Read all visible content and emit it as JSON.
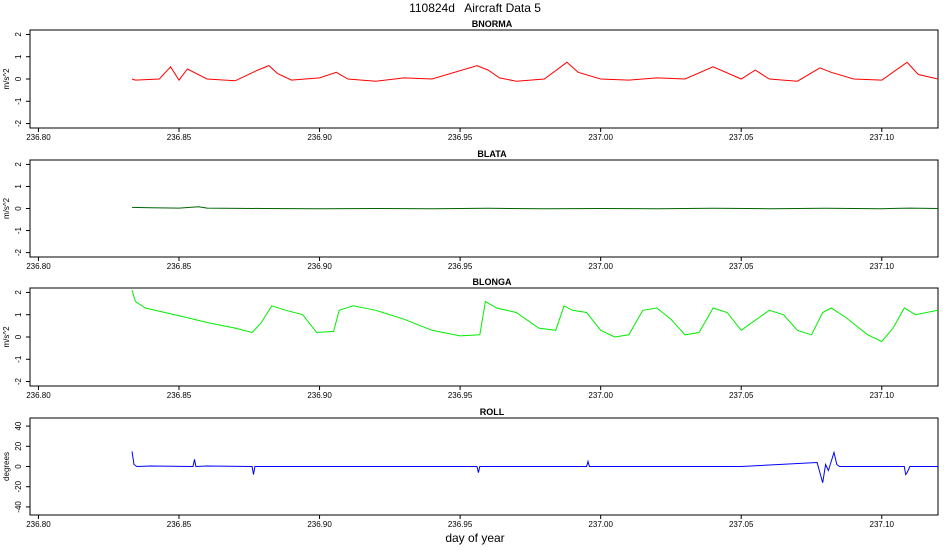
{
  "page_title": "110824d   Aircraft Data 5",
  "x_axis_label": "day of year",
  "chart_data": [
    {
      "type": "line",
      "title": "BNORMA",
      "ylabel": "m/s^2",
      "color": "#ff0000",
      "xlim": [
        236.797,
        237.12
      ],
      "ylim": [
        -2.2,
        2.2
      ],
      "xticks": [
        "236.80",
        "236.85",
        "236.90",
        "236.95",
        "237.00",
        "237.05",
        "237.10"
      ],
      "yticks": [
        "-2",
        "-1",
        "0",
        "1",
        "2"
      ],
      "series": [
        {
          "x": [
            236.8333,
            236.8345,
            236.843,
            236.847,
            236.85,
            236.853,
            236.86,
            236.87,
            236.878,
            236.882,
            236.885,
            236.89,
            236.9,
            236.906,
            236.91,
            236.92,
            236.93,
            236.94,
            236.956,
            236.96,
            236.964,
            236.97,
            236.98,
            236.988,
            236.992,
            237.0,
            237.01,
            237.02,
            237.03,
            237.04,
            237.05,
            237.055,
            237.06,
            237.07,
            237.078,
            237.082,
            237.09,
            237.1,
            237.109,
            237.113,
            237.12
          ],
          "y": [
            0,
            -0.05,
            0,
            0.55,
            -0.05,
            0.45,
            0,
            -0.08,
            0.4,
            0.6,
            0.25,
            -0.05,
            0.05,
            0.3,
            0,
            -0.1,
            0.05,
            0,
            0.6,
            0.4,
            0.05,
            -0.1,
            0,
            0.75,
            0.3,
            0,
            -0.05,
            0.05,
            0,
            0.55,
            0,
            0.4,
            0,
            -0.1,
            0.5,
            0.3,
            0,
            -0.05,
            0.75,
            0.2,
            0
          ]
        }
      ]
    },
    {
      "type": "line",
      "title": "BLATA",
      "ylabel": "m/s^2",
      "color": "#006400",
      "xlim": [
        236.797,
        237.12
      ],
      "ylim": [
        -2.2,
        2.2
      ],
      "xticks": [
        "236.80",
        "236.85",
        "236.90",
        "236.95",
        "237.00",
        "237.05",
        "237.10"
      ],
      "yticks": [
        "-2",
        "-1",
        "0",
        "1",
        "2"
      ],
      "series": [
        {
          "x": [
            236.8333,
            236.84,
            236.85,
            236.857,
            236.86,
            236.88,
            236.9,
            236.92,
            236.94,
            236.96,
            236.98,
            237.0,
            237.02,
            237.04,
            237.06,
            237.08,
            237.1,
            237.11,
            237.12
          ],
          "y": [
            0.05,
            0.03,
            0.02,
            0.08,
            0.02,
            0.0,
            -0.01,
            0.0,
            -0.01,
            0.01,
            -0.01,
            0.0,
            -0.01,
            0.01,
            -0.01,
            0.01,
            -0.01,
            0.02,
            0.0
          ]
        }
      ]
    },
    {
      "type": "line",
      "title": "BLONGA",
      "ylabel": "m/s^2",
      "color": "#00ee00",
      "xlim": [
        236.797,
        237.12
      ],
      "ylim": [
        -2.2,
        2.2
      ],
      "xticks": [
        "236.80",
        "236.85",
        "236.90",
        "236.95",
        "237.00",
        "237.05",
        "237.10"
      ],
      "yticks": [
        "-2",
        "-1",
        "0",
        "1",
        "2"
      ],
      "series": [
        {
          "x": [
            236.8333,
            236.8345,
            236.838,
            236.845,
            236.852,
            236.86,
            236.87,
            236.876,
            236.879,
            236.883,
            236.888,
            236.894,
            236.899,
            236.905,
            236.907,
            236.912,
            236.92,
            236.93,
            236.94,
            236.95,
            236.957,
            236.959,
            236.963,
            236.97,
            236.978,
            236.984,
            236.987,
            236.99,
            236.995,
            237.0,
            237.005,
            237.01,
            237.015,
            237.02,
            237.025,
            237.03,
            237.035,
            237.04,
            237.045,
            237.05,
            237.06,
            237.065,
            237.07,
            237.075,
            237.079,
            237.082,
            237.087,
            237.095,
            237.1,
            237.104,
            237.108,
            237.112,
            237.12
          ],
          "y": [
            2.1,
            1.6,
            1.3,
            1.1,
            0.9,
            0.65,
            0.4,
            0.2,
            0.6,
            1.4,
            1.2,
            1.0,
            0.2,
            0.25,
            1.2,
            1.4,
            1.2,
            0.8,
            0.3,
            0.05,
            0.1,
            1.6,
            1.3,
            1.1,
            0.4,
            0.3,
            1.4,
            1.2,
            1.1,
            0.3,
            0.0,
            0.1,
            1.2,
            1.3,
            0.8,
            0.1,
            0.2,
            1.3,
            1.1,
            0.3,
            1.2,
            1.0,
            0.3,
            0.1,
            1.1,
            1.3,
            0.9,
            0.1,
            -0.2,
            0.4,
            1.3,
            1.0,
            1.2
          ]
        }
      ]
    },
    {
      "type": "line",
      "title": "ROLL",
      "ylabel": "degrees",
      "color": "#0000ff",
      "xlim": [
        236.797,
        237.12
      ],
      "ylim": [
        -48,
        48
      ],
      "xticks": [
        "236.80",
        "236.85",
        "236.90",
        "236.95",
        "237.00",
        "237.05",
        "237.10"
      ],
      "yticks": [
        "-40",
        "-20",
        "0",
        "20",
        "40"
      ],
      "series": [
        {
          "x": [
            236.8333,
            236.834,
            236.835,
            236.84,
            236.855,
            236.8555,
            236.856,
            236.86,
            236.876,
            236.8765,
            236.877,
            236.9,
            236.956,
            236.9565,
            236.957,
            236.995,
            236.9955,
            236.996,
            237.05,
            237.077,
            237.079,
            237.08,
            237.081,
            237.083,
            237.084,
            237.085,
            237.09,
            237.108,
            237.1085,
            237.109,
            237.11,
            237.12
          ],
          "y": [
            15,
            2,
            0,
            0.5,
            0,
            7,
            0,
            0.5,
            0,
            -8,
            0,
            0,
            0,
            -6,
            0,
            0,
            5,
            0,
            0,
            4,
            -16,
            2,
            -4,
            14,
            2,
            0,
            0,
            0,
            -8,
            -6,
            0,
            0
          ]
        }
      ]
    }
  ]
}
